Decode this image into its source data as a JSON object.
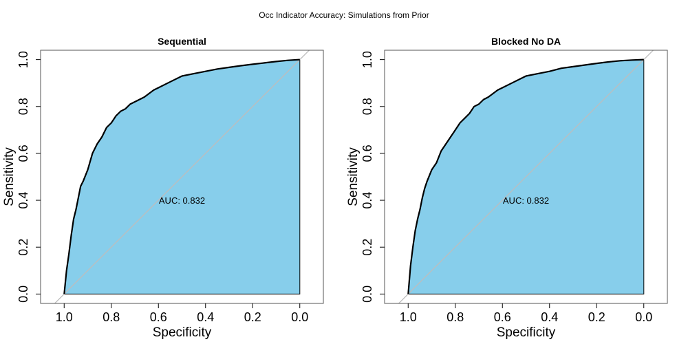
{
  "figure": {
    "title": "Occ Indicator Accuracy: Simulations from Prior"
  },
  "chart_data": [
    {
      "type": "area",
      "title": "Sequential",
      "xlabel": "Specificity",
      "ylabel": "Sensitivity",
      "x_reversed": true,
      "xlim": [
        1.1,
        -0.1
      ],
      "ylim": [
        -0.04,
        1.04
      ],
      "x_ticks": [
        1.0,
        0.8,
        0.6,
        0.4,
        0.2,
        0.0
      ],
      "x_tick_labels": [
        "1.0",
        "0.8",
        "0.6",
        "0.4",
        "0.2",
        "0.0"
      ],
      "y_ticks": [
        0.0,
        0.2,
        0.4,
        0.6,
        0.8,
        1.0
      ],
      "y_tick_labels": [
        "0.0",
        "0.2",
        "0.4",
        "0.6",
        "0.8",
        "1.0"
      ],
      "annotation": "AUC: 0.832",
      "annotation_pos": [
        0.5,
        0.4
      ],
      "fill_color": "#87CEEB",
      "diagonal_color": "#bdbdbd",
      "curve": {
        "specificity": [
          1.0,
          0.99,
          0.98,
          0.97,
          0.96,
          0.95,
          0.94,
          0.93,
          0.92,
          0.9,
          0.88,
          0.86,
          0.84,
          0.82,
          0.8,
          0.78,
          0.76,
          0.74,
          0.72,
          0.7,
          0.66,
          0.62,
          0.6,
          0.56,
          0.5,
          0.45,
          0.4,
          0.35,
          0.3,
          0.25,
          0.2,
          0.15,
          0.1,
          0.05,
          0.0
        ],
        "sensitivity": [
          0.0,
          0.1,
          0.17,
          0.25,
          0.32,
          0.36,
          0.41,
          0.46,
          0.48,
          0.53,
          0.6,
          0.64,
          0.67,
          0.71,
          0.73,
          0.76,
          0.78,
          0.79,
          0.81,
          0.82,
          0.84,
          0.87,
          0.88,
          0.9,
          0.93,
          0.94,
          0.95,
          0.96,
          0.967,
          0.974,
          0.98,
          0.986,
          0.992,
          0.997,
          1.0
        ]
      }
    },
    {
      "type": "area",
      "title": "Blocked No DA",
      "xlabel": "Specificity",
      "ylabel": "Sensitivity",
      "x_reversed": true,
      "xlim": [
        1.1,
        -0.1
      ],
      "ylim": [
        -0.04,
        1.04
      ],
      "x_ticks": [
        1.0,
        0.8,
        0.6,
        0.4,
        0.2,
        0.0
      ],
      "x_tick_labels": [
        "1.0",
        "0.8",
        "0.6",
        "0.4",
        "0.2",
        "0.0"
      ],
      "y_ticks": [
        0.0,
        0.2,
        0.4,
        0.6,
        0.8,
        1.0
      ],
      "y_tick_labels": [
        "0.0",
        "0.2",
        "0.4",
        "0.6",
        "0.8",
        "1.0"
      ],
      "annotation": "AUC: 0.832",
      "annotation_pos": [
        0.5,
        0.4
      ],
      "fill_color": "#87CEEB",
      "diagonal_color": "#bdbdbd",
      "curve": {
        "specificity": [
          1.0,
          0.99,
          0.98,
          0.97,
          0.96,
          0.95,
          0.94,
          0.93,
          0.92,
          0.9,
          0.88,
          0.86,
          0.84,
          0.82,
          0.8,
          0.78,
          0.76,
          0.74,
          0.72,
          0.7,
          0.68,
          0.66,
          0.62,
          0.6,
          0.56,
          0.5,
          0.45,
          0.4,
          0.35,
          0.3,
          0.25,
          0.2,
          0.15,
          0.1,
          0.05,
          0.0
        ],
        "sensitivity": [
          0.0,
          0.12,
          0.2,
          0.27,
          0.32,
          0.36,
          0.41,
          0.45,
          0.48,
          0.53,
          0.56,
          0.61,
          0.64,
          0.67,
          0.7,
          0.73,
          0.75,
          0.77,
          0.8,
          0.81,
          0.83,
          0.84,
          0.87,
          0.88,
          0.9,
          0.93,
          0.94,
          0.95,
          0.963,
          0.97,
          0.977,
          0.984,
          0.99,
          0.995,
          0.998,
          1.0
        ]
      }
    }
  ]
}
